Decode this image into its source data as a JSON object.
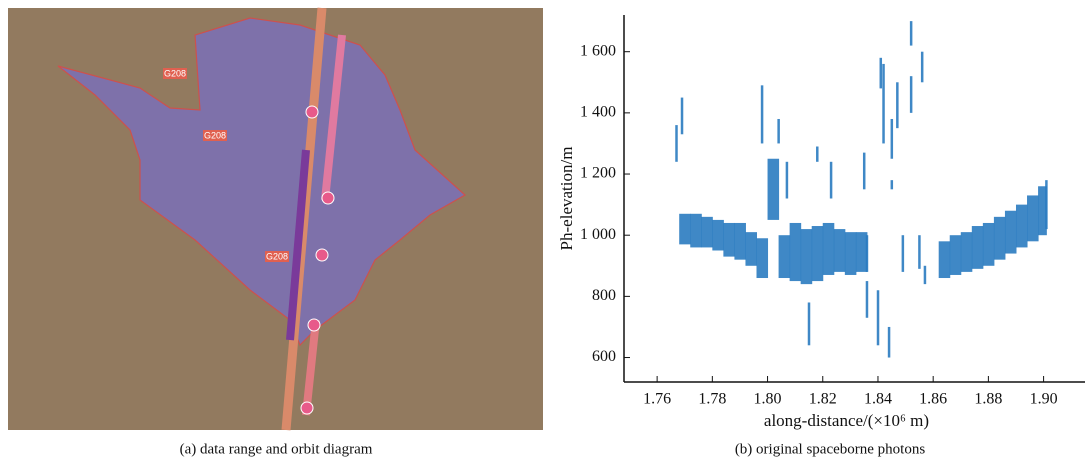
{
  "map": {
    "labels": [
      "G208",
      "G208",
      "G208"
    ]
  },
  "captions": [
    "(a) data range and orbit diagram",
    "(b) original spaceborne photons"
  ],
  "chart_data": {
    "type": "scatter",
    "x_label": "along-distance/(×10⁶ m)",
    "y_label": "Ph-elevation/m",
    "xlim": [
      1.748,
      1.915
    ],
    "ylim": [
      520,
      1720
    ],
    "xticks": [
      1.76,
      1.78,
      {
        "value": 1.8,
        "label": "1.80"
      },
      1.82,
      1.84,
      1.86,
      1.88,
      {
        "value": 1.9,
        "label": "1.90"
      }
    ],
    "yticks": [
      600,
      800,
      {
        "value": 1000,
        "label": "1 000"
      },
      {
        "value": 1200,
        "label": "1 200"
      },
      {
        "value": 1400,
        "label": "1 400"
      },
      {
        "value": 1600,
        "label": "1 600"
      }
    ],
    "grid": false,
    "series": [
      {
        "color": "#2a7bc0",
        "x": [
          1.768,
          1.772,
          1.776,
          1.78,
          1.784,
          1.788,
          1.792,
          1.796,
          1.8,
          1.804,
          1.808,
          1.812,
          1.816,
          1.82,
          1.824,
          1.828,
          1.832,
          1.836,
          1.862,
          1.866,
          1.87,
          1.874,
          1.878,
          1.882,
          1.886,
          1.89,
          1.894,
          1.898,
          1.901
        ],
        "low": [
          970,
          960,
          960,
          950,
          930,
          920,
          900,
          860,
          1050,
          860,
          850,
          840,
          850,
          870,
          880,
          870,
          880,
          880,
          860,
          870,
          880,
          890,
          900,
          920,
          940,
          960,
          980,
          1000,
          1020
        ],
        "high": [
          1070,
          1070,
          1060,
          1050,
          1040,
          1040,
          1010,
          990,
          1250,
          1000,
          1040,
          1020,
          1030,
          1040,
          1020,
          1010,
          1010,
          1000,
          980,
          1000,
          1010,
          1030,
          1040,
          1060,
          1080,
          1100,
          1130,
          1160,
          1180
        ]
      },
      {
        "color": "#2a7bc0",
        "x": [
          1.767,
          1.769,
          1.798,
          1.804,
          1.807,
          1.815,
          1.818,
          1.823,
          1.835,
          1.836,
          1.84,
          1.841,
          1.842,
          1.844,
          1.845,
          1.845,
          1.847,
          1.849,
          1.852,
          1.852,
          1.855,
          1.856,
          1.857
        ],
        "low": [
          1240,
          1330,
          1300,
          1300,
          1120,
          640,
          1240,
          1120,
          1150,
          730,
          640,
          1480,
          1300,
          600,
          1250,
          1150,
          1350,
          880,
          1400,
          1620,
          890,
          1500,
          840
        ],
        "high": [
          1360,
          1450,
          1490,
          1380,
          1240,
          780,
          1290,
          1240,
          1270,
          850,
          820,
          1580,
          1560,
          700,
          1380,
          1180,
          1500,
          1000,
          1520,
          1700,
          1000,
          1600,
          900
        ]
      }
    ]
  }
}
